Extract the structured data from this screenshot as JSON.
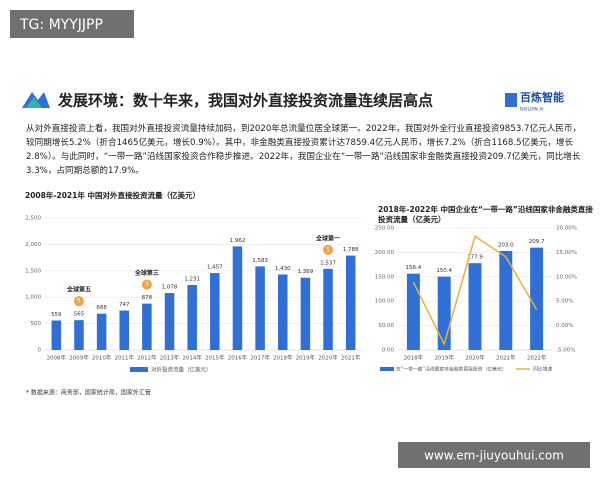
{
  "watermark": "TG: MYYJJPP",
  "header": {
    "title": "发展环境：数十年来，我国对外直接投资流量连续居高点",
    "brand": "百炼智能",
    "brand_sub": "BAILIAN AI"
  },
  "paragraph": "从对外直接投资上看，我国对外直接投资流量持续加码，到2020年总流量位居全球第一。2022年，我国对外全行业直接投资9853.7亿元人民币，较同期增长5.2%（折合1465亿美元，增长0.9%）。其中，非金融类直接投资累计达7859.4亿元人民币，增长7.2%（折合1168.5亿美元，增长2.8%）。与此同时，“一带一路”沿线国家投资合作稳步推进。2022年，我国企业在“一带一路”沿线国家非金融类直接投资209.7亿美元，同比增长3.3%，占同期总额的17.9%。",
  "chart_data": [
    {
      "type": "bar",
      "title": "2008年-2021年 中国对外直接投资流量（亿美元）",
      "categories": [
        "2008年",
        "2009年",
        "2010年",
        "2011年",
        "2012年",
        "2013年",
        "2014年",
        "2015年",
        "2016年",
        "2017年",
        "2018年",
        "2019年",
        "2020年",
        "2021年"
      ],
      "series": [
        {
          "name": "对外投资流量（亿美元）",
          "color": "#2f6fd6",
          "values": [
            559,
            565,
            688,
            747,
            878,
            1078,
            1231,
            1457,
            1962,
            1583,
            1430,
            1369,
            1537,
            1788
          ],
          "value_labels": [
            "559",
            "565",
            "688",
            "747",
            "878",
            "1,078",
            "1,231",
            "1,457",
            "1,962",
            "1,583",
            "1,430",
            "1,369",
            "1,537",
            "1,788"
          ]
        }
      ],
      "ylim": [
        0,
        2500
      ],
      "yticks": [
        0,
        {
          "value": 500,
          "label": "500"
        },
        {
          "value": 1000,
          "label": "1,000"
        },
        {
          "value": 1500,
          "label": "1,500"
        },
        {
          "value": 2000,
          "label": "2,000"
        },
        {
          "value": 2500,
          "label": "2,500"
        }
      ],
      "grid": true,
      "annotations": [
        {
          "text": "全球第五",
          "medal": "5",
          "x": "2009年"
        },
        {
          "text": "全球第三",
          "medal": "3",
          "x": "2012年"
        },
        {
          "text": "全球第一",
          "medal": "1",
          "x": "2020年"
        }
      ]
    },
    {
      "type": "bar-line",
      "title": "2018年-2022年 中国企业在“一带一路”沿线国家非金融类直接投资流量（亿美元）",
      "categories": [
        "2018年",
        "2019年",
        "2020年",
        "2021年",
        "2022年"
      ],
      "series": [
        {
          "name": "在“一带一路”沿线国家非金融类直接投资（亿美元）",
          "color": "#2f6fd6",
          "values": [
            156.4,
            150.4,
            177.9,
            203,
            209.7
          ],
          "value_labels": [
            "156.4",
            "150.4",
            "177.9",
            "203.0",
            "209.7"
          ]
        },
        {
          "name": "同比增速",
          "color": "#e8b03a",
          "axis": "y2",
          "values": [
            8.9,
            -3.8,
            18.3,
            14.1,
            3.3
          ]
        }
      ],
      "ylim": [
        0,
        250
      ],
      "yticks": [
        {
          "value": 0,
          "label": "0.00"
        },
        {
          "value": 50,
          "label": "50.00"
        },
        {
          "value": 100,
          "label": "100.00"
        },
        {
          "value": 150,
          "label": "150.00"
        },
        {
          "value": 200,
          "label": "200.00"
        },
        {
          "value": 250,
          "label": "250.00"
        }
      ],
      "y2lim": [
        -5,
        20
      ],
      "y2ticks": [
        {
          "value": -5,
          "label": "-5.00%"
        },
        {
          "value": 0,
          "label": "0.00%"
        },
        {
          "value": 5,
          "label": "5.00%"
        },
        {
          "value": 10,
          "label": "10.00%"
        },
        {
          "value": 15,
          "label": "15.00%"
        },
        {
          "value": 20,
          "label": "20.00%"
        }
      ],
      "grid": true
    }
  ],
  "source": "* 数据来源：商务部，国家统计局，国家外汇管",
  "site": "www.em-jiuyouhui.com"
}
